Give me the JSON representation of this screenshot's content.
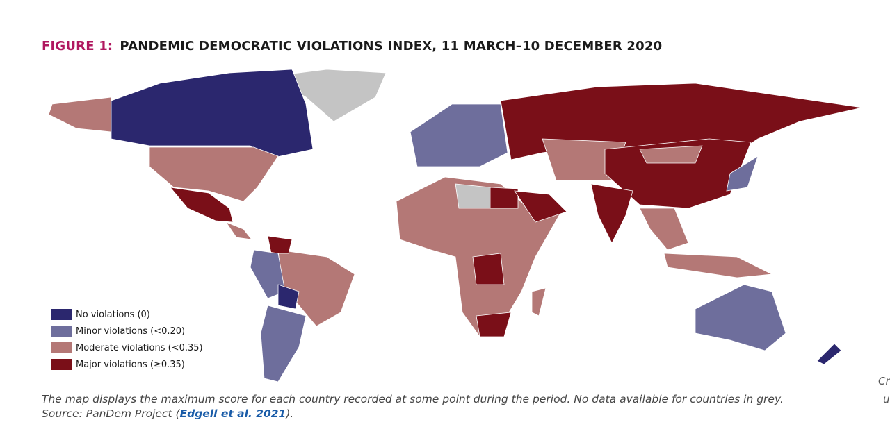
{
  "title": {
    "figure": "FIGURE 1:",
    "text": "PANDEMIC DEMOCRATIC VIOLATIONS INDEX, 11 MARCH–10 DECEMBER 2020"
  },
  "legend": [
    {
      "label": "No violations (0)",
      "color": "#2b276e"
    },
    {
      "label": "Minor violations (<0.20)",
      "color": "#6e6e9c"
    },
    {
      "label": "Moderate violations (<0.35)",
      "color": "#b47876"
    },
    {
      "label": "Major violations (≥0.35)",
      "color": "#7a0f18"
    }
  ],
  "no_data_color": "#c4c4c4",
  "caption": {
    "note": "The map displays the maximum score for each country recorded at some point during the period. No data available for countries in grey.",
    "source_prefix": "Source: PanDem Project (",
    "source_link": "Edgell et al. 2021",
    "source_suffix": ")."
  },
  "cut_off_text": [
    "Cr",
    "u"
  ]
}
